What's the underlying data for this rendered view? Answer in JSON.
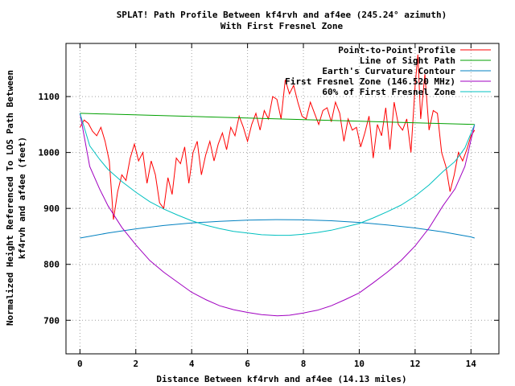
{
  "chart_data": {
    "type": "line",
    "title": "SPLAT! Path Profile Between kf4rvh and af4ee (245.24° azimuth)",
    "subtitle": "With First Fresnel Zone",
    "xlabel": "Distance Between kf4rvh and af4ee (14.13 miles)",
    "ylabel": [
      "Normalized Height Referenced To LOS Path Between",
      "kf4rvh and af4ee (feet)"
    ],
    "xlim": [
      -0.5,
      15
    ],
    "ylim": [
      640,
      1195
    ],
    "x_ticks": [
      0,
      2,
      4,
      6,
      8,
      10,
      12,
      14
    ],
    "y_ticks": [
      700,
      800,
      900,
      1000,
      1100
    ],
    "grid": true,
    "legend_position": "top-right",
    "series": [
      {
        "name": "Point-to-Point Profile",
        "color": "#ff0000",
        "x": [
          0,
          0.15,
          0.3,
          0.45,
          0.6,
          0.75,
          0.9,
          1.05,
          1.2,
          1.35,
          1.5,
          1.65,
          1.8,
          1.95,
          2.1,
          2.25,
          2.4,
          2.55,
          2.7,
          2.85,
          3.0,
          3.15,
          3.3,
          3.45,
          3.6,
          3.75,
          3.9,
          4.05,
          4.2,
          4.35,
          4.5,
          4.65,
          4.8,
          4.95,
          5.1,
          5.25,
          5.4,
          5.55,
          5.7,
          5.85,
          6.0,
          6.15,
          6.3,
          6.45,
          6.6,
          6.75,
          6.9,
          7.05,
          7.2,
          7.35,
          7.5,
          7.65,
          7.8,
          7.95,
          8.1,
          8.25,
          8.4,
          8.55,
          8.7,
          8.85,
          9.0,
          9.15,
          9.3,
          9.45,
          9.6,
          9.75,
          9.9,
          10.05,
          10.2,
          10.35,
          10.5,
          10.65,
          10.8,
          10.95,
          11.1,
          11.25,
          11.4,
          11.55,
          11.7,
          11.85,
          12.0,
          12.1,
          12.2,
          12.35,
          12.5,
          12.65,
          12.8,
          12.95,
          13.1,
          13.25,
          13.4,
          13.55,
          13.7,
          13.85,
          14.0,
          14.13
        ],
        "values": [
          1045,
          1058,
          1052,
          1038,
          1030,
          1045,
          1020,
          985,
          880,
          930,
          960,
          950,
          990,
          1015,
          985,
          1000,
          945,
          985,
          960,
          910,
          900,
          955,
          925,
          990,
          980,
          1010,
          945,
          1000,
          1020,
          960,
          995,
          1020,
          985,
          1015,
          1035,
          1005,
          1045,
          1030,
          1065,
          1045,
          1020,
          1050,
          1070,
          1040,
          1075,
          1060,
          1100,
          1095,
          1060,
          1130,
          1105,
          1120,
          1090,
          1065,
          1060,
          1090,
          1070,
          1050,
          1075,
          1080,
          1055,
          1090,
          1070,
          1020,
          1060,
          1040,
          1045,
          1010,
          1035,
          1065,
          990,
          1050,
          1030,
          1080,
          1005,
          1090,
          1050,
          1040,
          1060,
          1000,
          1120,
          1175,
          1060,
          1140,
          1040,
          1075,
          1070,
          1000,
          975,
          930,
          960,
          1000,
          985,
          1005,
          1030,
          1040
        ]
      },
      {
        "name": "Line of Sight Path",
        "color": "#00a000",
        "x": [
          0,
          14.13
        ],
        "values": [
          1070,
          1050
        ]
      },
      {
        "name": "Earth's Curvature Contour",
        "color": "#0080c0",
        "x": [
          0,
          1,
          2,
          3,
          4,
          5,
          6,
          7,
          7.065,
          8,
          9,
          10,
          11,
          12,
          13,
          14,
          14.13
        ],
        "values": [
          847,
          856,
          863.5,
          869.5,
          874,
          877,
          879,
          880,
          880,
          879.5,
          878,
          875,
          870.5,
          865,
          858,
          849,
          847
        ]
      },
      {
        "name": "First Fresnel Zone (146.520 MHz)",
        "color": "#a000c0",
        "x": [
          0,
          0.35,
          0.7,
          1.0,
          1.5,
          2.0,
          2.5,
          3.0,
          3.5,
          4.0,
          4.5,
          5.0,
          5.5,
          6.0,
          6.5,
          7.065,
          7.5,
          8.0,
          8.5,
          9.0,
          9.5,
          10.0,
          10.5,
          11.0,
          11.5,
          12.0,
          12.5,
          13.0,
          13.43,
          13.78,
          14.13
        ],
        "values": [
          1070,
          975,
          935,
          905,
          866,
          835,
          807,
          786,
          768,
          750,
          737,
          726,
          719,
          714,
          710,
          708,
          709,
          713,
          718,
          726,
          737,
          749,
          767,
          786,
          807,
          833,
          865,
          905,
          935,
          975,
          1050
        ]
      },
      {
        "name": "60% of First Fresnel Zone",
        "color": "#00c0c0",
        "x": [
          0,
          0.35,
          0.7,
          1.0,
          1.5,
          2.0,
          2.5,
          3.0,
          3.5,
          4.0,
          4.5,
          5.0,
          5.5,
          6.0,
          6.5,
          7.065,
          7.5,
          8.0,
          8.5,
          9.0,
          9.5,
          10.0,
          10.5,
          11.0,
          11.5,
          12.0,
          12.5,
          13.0,
          13.43,
          13.78,
          14.13
        ],
        "values": [
          1070,
          1012,
          988,
          970,
          948,
          929,
          912,
          899,
          888,
          878,
          870,
          864,
          859,
          856,
          853,
          852,
          852,
          854,
          857,
          861,
          867,
          873,
          883,
          894,
          906,
          922,
          942,
          966,
          984,
          1008,
          1050
        ]
      }
    ]
  }
}
